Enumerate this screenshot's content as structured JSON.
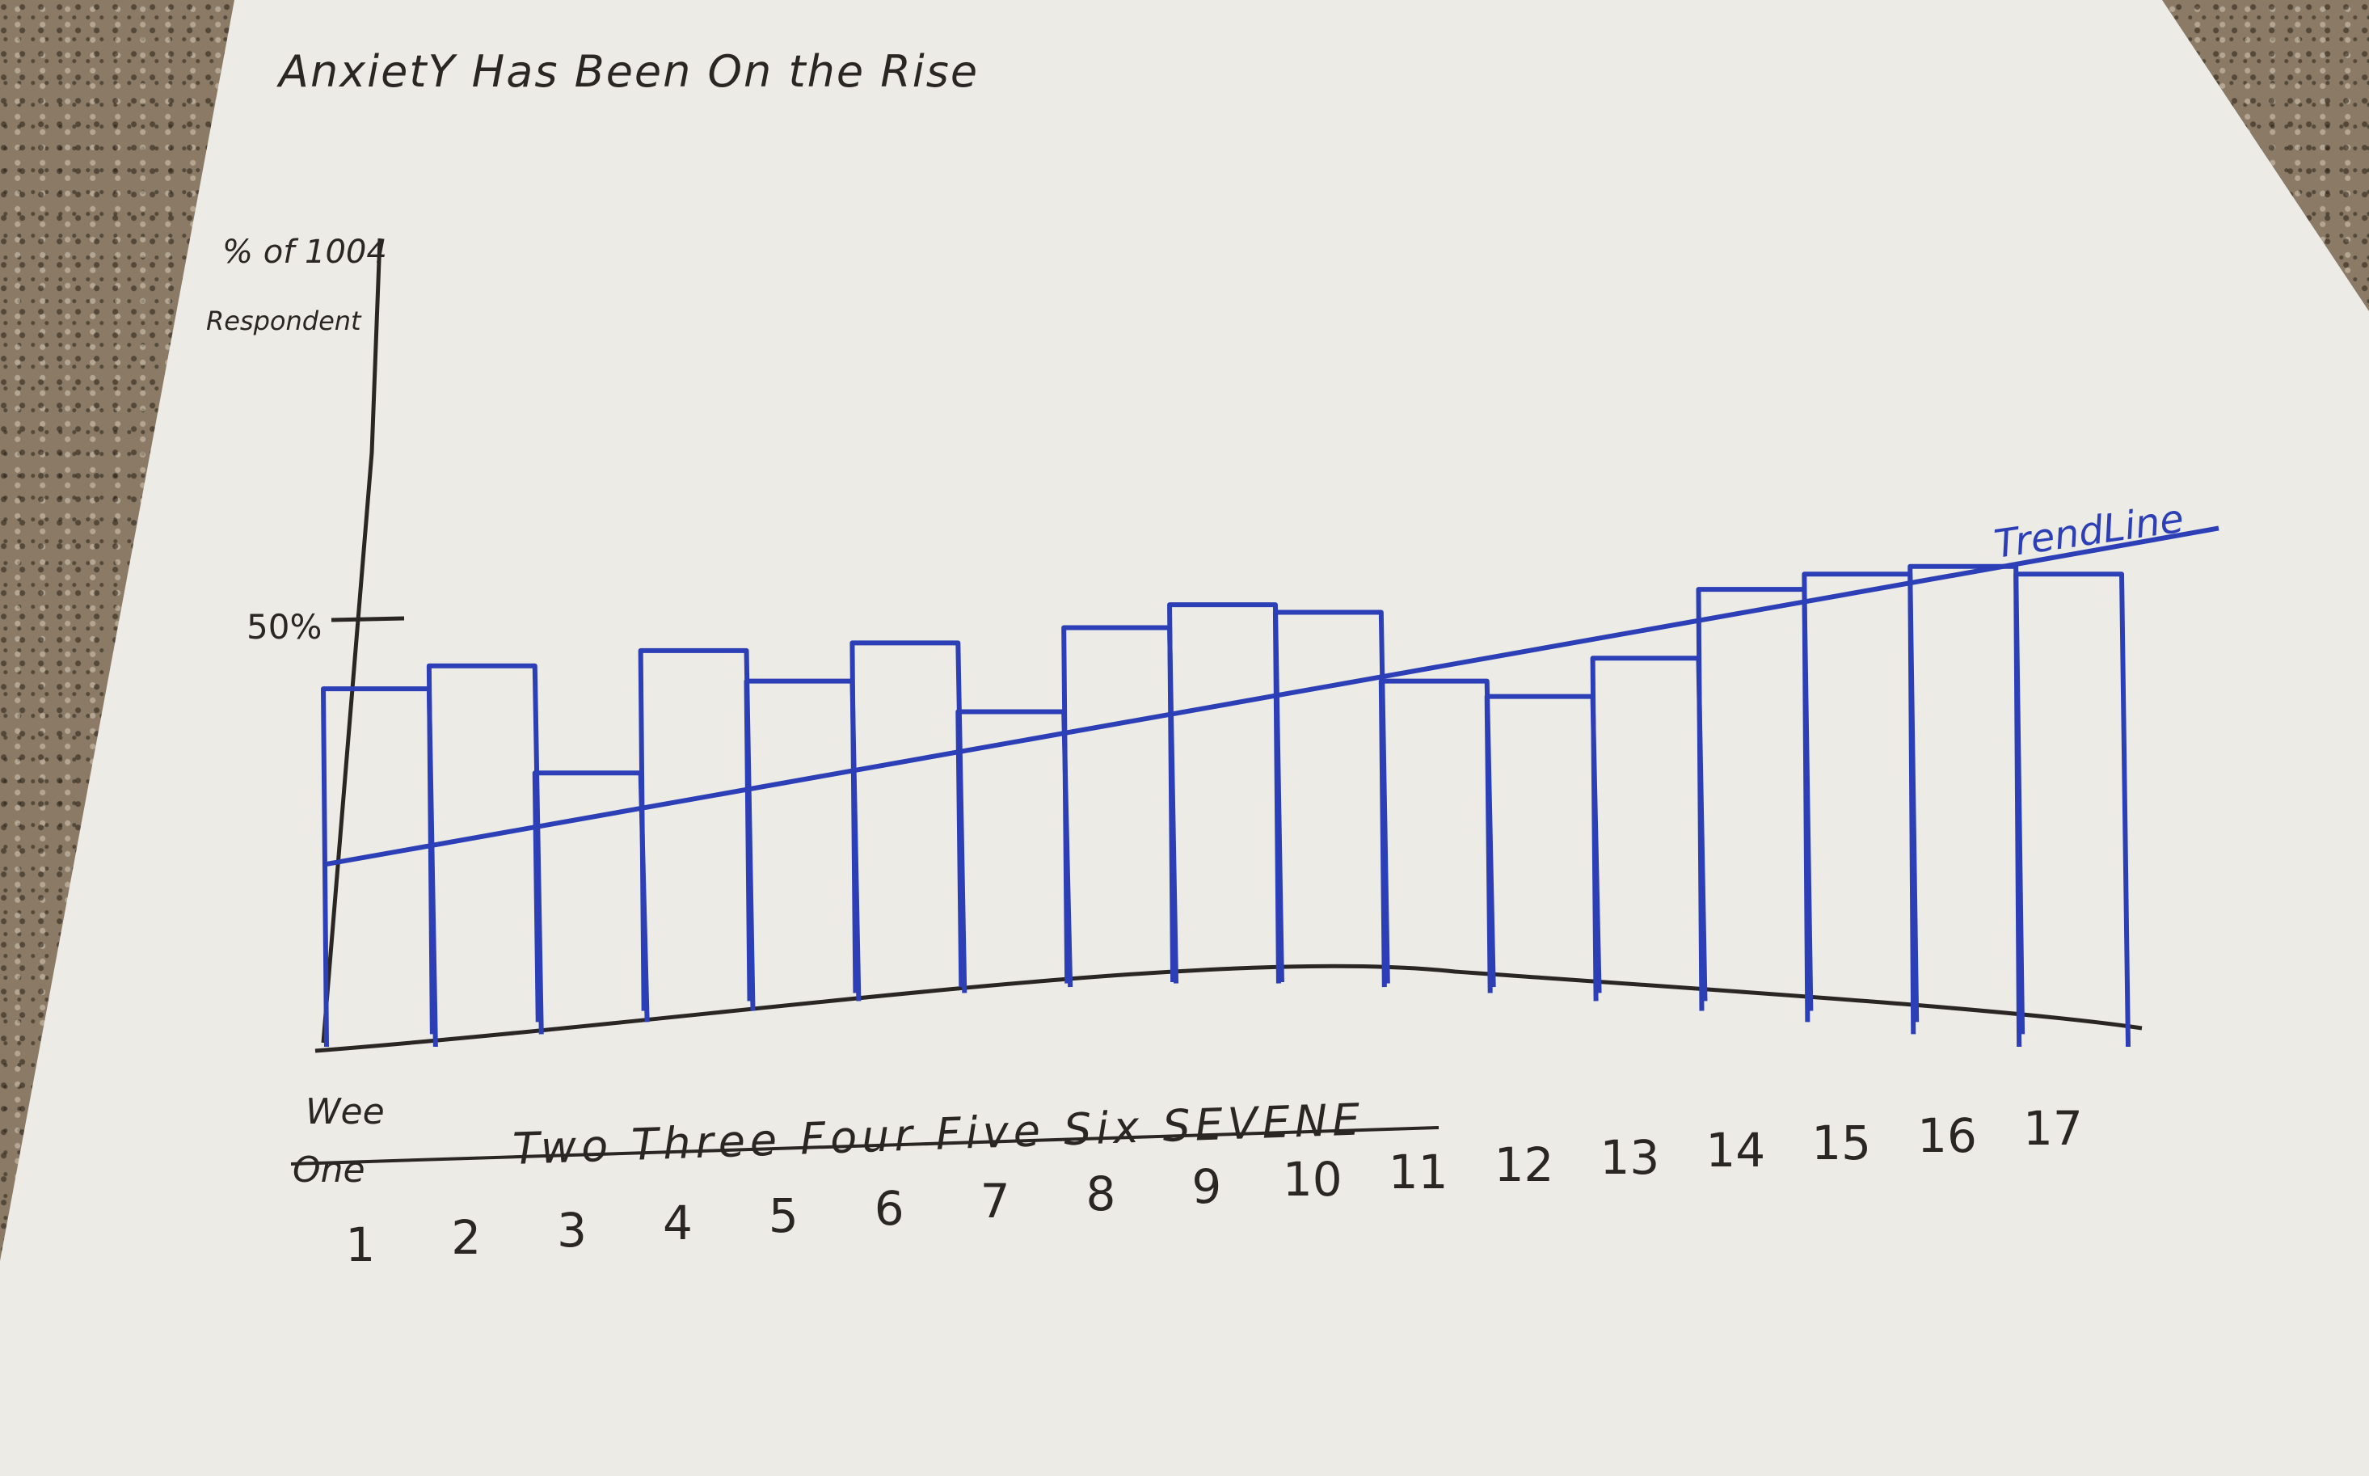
{
  "chart_data": {
    "type": "bar",
    "title": "AnxietY Has Been On the Rise",
    "ylabel_line1": "% of 1004",
    "ylabel_line2": "Respondent",
    "y_tick_label": "50%",
    "y_tick_value": 50,
    "ylim": [
      0,
      100
    ],
    "categories": [
      "1",
      "2",
      "3",
      "4",
      "5",
      "6",
      "7",
      "8",
      "9",
      "10",
      "11",
      "12",
      "13",
      "14",
      "15",
      "16",
      "17"
    ],
    "values": [
      41,
      44,
      30,
      46,
      42,
      47,
      38,
      49,
      52,
      51,
      42,
      40,
      45,
      54,
      56,
      57,
      56
    ],
    "trendline": {
      "label": "TrendLine",
      "start": 18,
      "end": 62
    },
    "word_rows": {
      "row1": "Wee",
      "row2_first": "One",
      "row2_rest": "Two Three Four Five Six SEVENE"
    },
    "grid": false,
    "legend": "none"
  },
  "colors": {
    "paper": "#ecebe6",
    "ink_black": "#2a2624",
    "ink_blue": "#2d3fb6",
    "countertop": "#8a7a66"
  }
}
